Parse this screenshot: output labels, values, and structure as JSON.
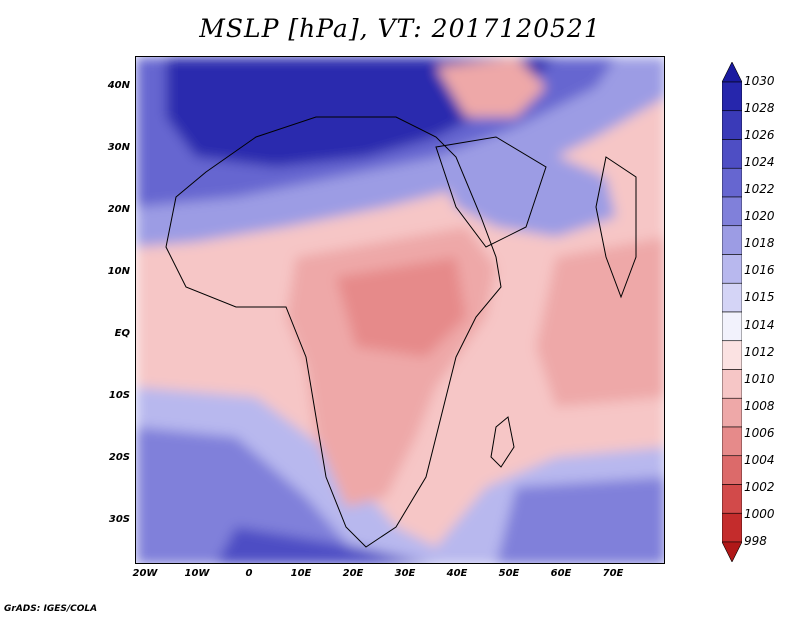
{
  "title": "MSLP [hPa], VT: 2017120521",
  "credit": "GrADS: IGES/COLA",
  "y_ticks": [
    "40N",
    "30N",
    "20N",
    "10N",
    "EQ",
    "10S",
    "20S",
    "30S"
  ],
  "x_ticks": [
    "20W",
    "10W",
    "0",
    "10E",
    "20E",
    "30E",
    "40E",
    "50E",
    "60E",
    "70E"
  ],
  "colorbar": {
    "labels": [
      "1030",
      "1028",
      "1026",
      "1024",
      "1022",
      "1020",
      "1018",
      "1016",
      "1015",
      "1014",
      "1012",
      "1010",
      "1008",
      "1006",
      "1004",
      "1002",
      "1000",
      "998"
    ],
    "colors": [
      "#1a1aa0",
      "#2626ac",
      "#3a3ab8",
      "#4e4ec4",
      "#6666d0",
      "#8080da",
      "#9c9ce4",
      "#b8b8ee",
      "#d4d4f6",
      "#f2f2fc",
      "#fbe2e2",
      "#f6c6c6",
      "#eea8a8",
      "#e68a8a",
      "#dc6a6a",
      "#d24a4a",
      "#c42c2c",
      "#b01818"
    ]
  },
  "map_layers": {
    "background": "#f6c6c6",
    "high_pressure_north": "#3a3ab8",
    "high_pressure_south": "#8080da",
    "land_low": "#eea8a8",
    "land_lowest": "#e68a8a",
    "coast": "#000000"
  }
}
